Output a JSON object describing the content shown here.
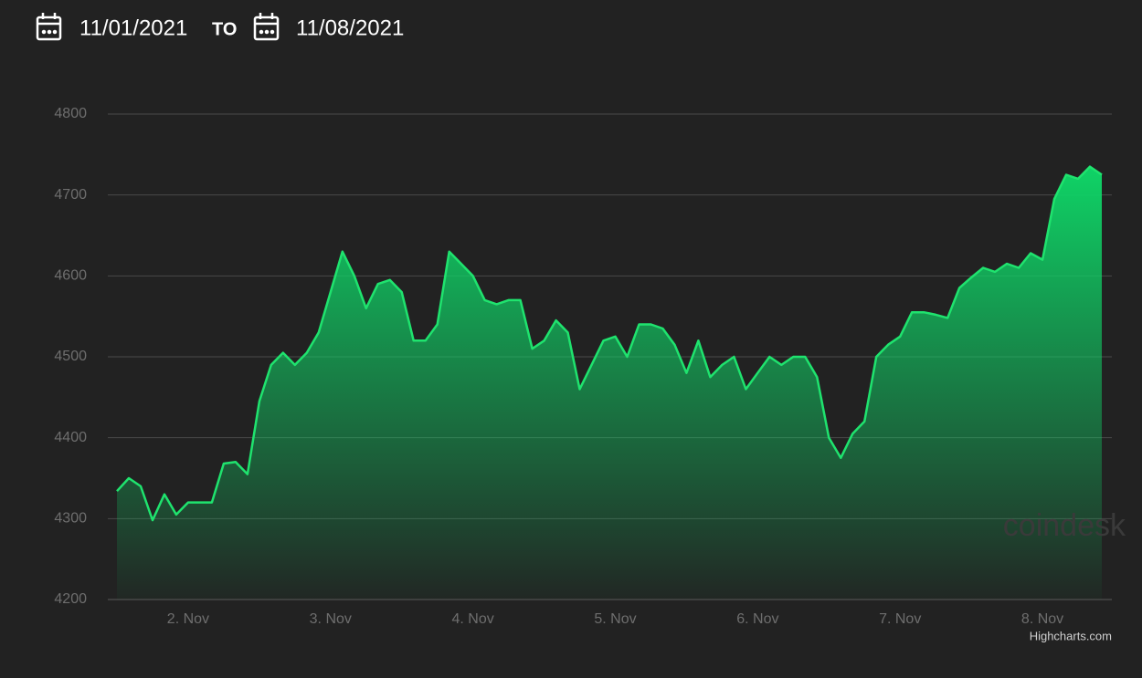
{
  "header": {
    "from": "11/01/2021",
    "to_label": "TO",
    "to": "11/08/2021"
  },
  "chart_data": {
    "type": "area",
    "categories": [
      null,
      null,
      null,
      null,
      null,
      null,
      "2. Nov",
      null,
      null,
      null,
      null,
      null,
      null,
      null,
      null,
      null,
      null,
      null,
      "3. Nov",
      null,
      null,
      null,
      null,
      null,
      null,
      null,
      null,
      null,
      null,
      null,
      "4. Nov",
      null,
      null,
      null,
      null,
      null,
      null,
      null,
      null,
      null,
      null,
      null,
      "5. Nov",
      null,
      null,
      null,
      null,
      null,
      null,
      null,
      null,
      null,
      null,
      null,
      "6. Nov",
      null,
      null,
      null,
      null,
      null,
      null,
      null,
      null,
      null,
      null,
      null,
      "7. Nov",
      null,
      null,
      null,
      null,
      null,
      null,
      null,
      null,
      null,
      null,
      null,
      "8. Nov",
      null,
      null,
      null,
      null,
      null
    ],
    "values": [
      4334,
      4350,
      4340,
      4298,
      4330,
      4305,
      4320,
      4320,
      4320,
      4368,
      4370,
      4355,
      4445,
      4490,
      4505,
      4490,
      4505,
      4530,
      4580,
      4630,
      4600,
      4560,
      4590,
      4595,
      4580,
      4520,
      4520,
      4540,
      4630,
      4615,
      4600,
      4570,
      4565,
      4570,
      4570,
      4510,
      4520,
      4545,
      4530,
      4460,
      4490,
      4520,
      4525,
      4500,
      4540,
      4540,
      4535,
      4515,
      4480,
      4520,
      4475,
      4490,
      4500,
      4460,
      4480,
      4500,
      4490,
      4500,
      4500,
      4475,
      4400,
      4375,
      4405,
      4420,
      4500,
      4515,
      4525,
      4555,
      4555,
      4552,
      4548,
      4585,
      4598,
      4610,
      4605,
      4615,
      4610,
      4628,
      4620,
      4695,
      4725,
      4720,
      4735,
      4725
    ],
    "color": "#1fe36e",
    "ylim": [
      4200,
      4800
    ],
    "yticks": [
      4200,
      4300,
      4400,
      4500,
      4600,
      4700,
      4800
    ],
    "grid": true,
    "watermark": "coindesk",
    "credits": "Highcharts.com"
  }
}
